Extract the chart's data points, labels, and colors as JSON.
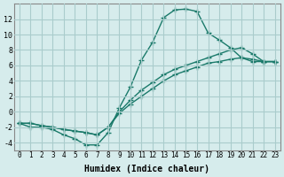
{
  "xlabel": "Humidex (Indice chaleur)",
  "ylabel": "",
  "background_color": "#d6ecec",
  "grid_color": "#aacccc",
  "line_color": "#1a7a6a",
  "xlim": [
    -0.5,
    23.5
  ],
  "ylim": [
    -5,
    14
  ],
  "xticks": [
    0,
    1,
    2,
    3,
    4,
    5,
    6,
    7,
    8,
    9,
    10,
    11,
    12,
    13,
    14,
    15,
    16,
    17,
    18,
    19,
    20,
    21,
    22,
    23
  ],
  "yticks": [
    -4,
    -2,
    0,
    2,
    4,
    6,
    8,
    10,
    12
  ],
  "line1_x": [
    0,
    1,
    2,
    3,
    4,
    5,
    6,
    7,
    8,
    9,
    10,
    11,
    12,
    13,
    14,
    15,
    16,
    17,
    18,
    19,
    20,
    21,
    22,
    23
  ],
  "line1_y": [
    -1.5,
    -2.0,
    -2.0,
    -2.3,
    -3.0,
    -3.5,
    -4.3,
    -4.3,
    -2.7,
    0.5,
    3.2,
    6.7,
    9.0,
    12.2,
    13.2,
    13.3,
    13.0,
    10.2,
    9.3,
    8.3,
    7.0,
    6.5,
    6.5,
    6.5
  ],
  "line2_x": [
    0,
    1,
    2,
    3,
    4,
    5,
    6,
    7,
    8,
    9,
    10,
    11,
    12,
    13,
    14,
    15,
    16,
    17,
    18,
    19,
    20,
    21,
    22,
    23
  ],
  "line2_y": [
    -1.5,
    -1.5,
    -1.8,
    -2.0,
    -2.3,
    -2.5,
    -2.7,
    -3.0,
    -2.0,
    0.0,
    1.5,
    2.8,
    3.8,
    4.8,
    5.5,
    6.0,
    6.5,
    7.0,
    7.5,
    8.0,
    8.3,
    7.5,
    6.5,
    6.5
  ],
  "line3_x": [
    0,
    1,
    2,
    3,
    4,
    5,
    6,
    7,
    8,
    9,
    10,
    11,
    12,
    13,
    14,
    15,
    16,
    17,
    18,
    19,
    20,
    21,
    22,
    23
  ],
  "line3_y": [
    -1.5,
    -1.5,
    -1.8,
    -2.0,
    -2.3,
    -2.5,
    -2.7,
    -3.0,
    -2.0,
    -0.2,
    1.0,
    2.0,
    3.0,
    4.0,
    4.8,
    5.3,
    5.8,
    6.3,
    6.5,
    6.8,
    7.0,
    6.8,
    6.5,
    6.5
  ]
}
